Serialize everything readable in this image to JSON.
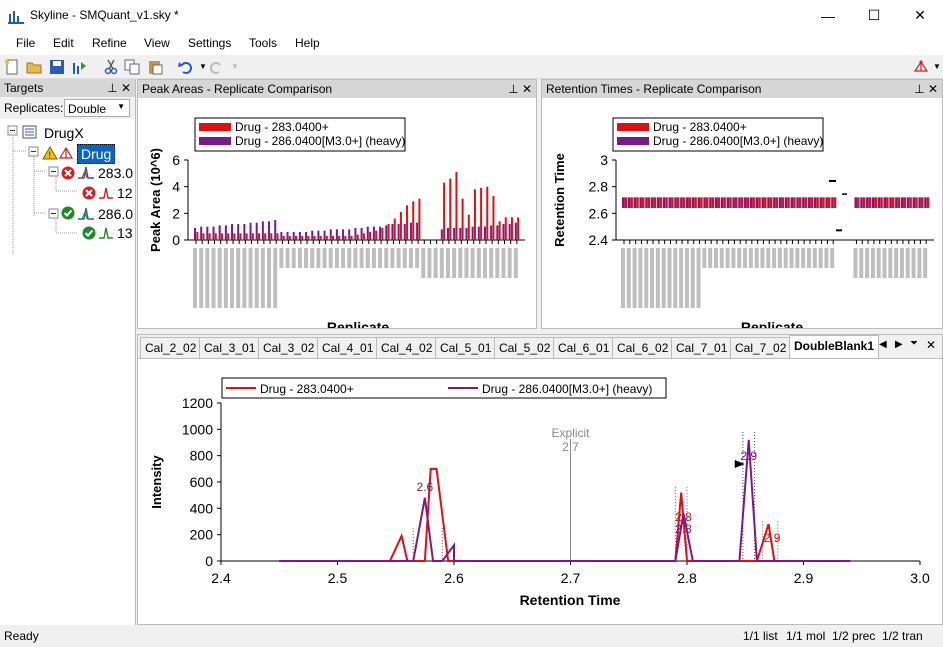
{
  "window": {
    "title": "Skyline - SMQuant_v1.sky *",
    "minimize": "—",
    "maximize": "☐",
    "close": "✕"
  },
  "menu": [
    "File",
    "Edit",
    "Refine",
    "View",
    "Settings",
    "Tools",
    "Help"
  ],
  "targets_panel": {
    "title": "Targets",
    "replicates_label": "Replicates:",
    "replicate_selected": "Double",
    "tree": {
      "group": "DrugX",
      "molecule": "Drug",
      "precursor1": "283.0",
      "transition1": "12",
      "precursor2": "286.0",
      "transition2": "13"
    }
  },
  "peak_areas": {
    "title": "Peak Areas - Replicate Comparison",
    "chart_data": {
      "type": "bar",
      "ylabel": "Peak Area (10^6)",
      "xlabel": "Replicate",
      "ylim": [
        0,
        6
      ],
      "yticks": [
        "0",
        "2",
        "4",
        "6"
      ],
      "series": [
        {
          "name": "Drug - 283.0400+",
          "color": "#e01010"
        },
        {
          "name": "Drug - 286.0400[M3.0+] (heavy)",
          "color": "#7a1a8a"
        }
      ],
      "red_values": [
        0.6,
        0.5,
        0.5,
        0.5,
        0.5,
        0.5,
        0.5,
        0.5,
        0.5,
        0.5,
        0.5,
        0.5,
        0.5,
        0.5,
        0.3,
        0.3,
        0.3,
        0.3,
        0.3,
        0.3,
        0.3,
        0.3,
        0.3,
        0.3,
        0.3,
        0.3,
        0.4,
        0.5,
        0.6,
        0.7,
        0.9,
        1.2,
        1.6,
        2.1,
        2.6,
        2.9,
        3.1,
        0.0,
        0.0,
        0.0,
        4.3,
        4.6,
        5.1,
        3.1,
        1.9,
        3.8,
        3.9,
        4.0,
        3.3,
        1.4,
        1.7,
        1.7,
        1.7
      ],
      "purple_values": [
        0.9,
        1.0,
        1.0,
        1.0,
        1.1,
        1.1,
        1.2,
        1.2,
        1.2,
        1.3,
        1.3,
        1.4,
        1.4,
        1.5,
        0.6,
        0.6,
        0.6,
        0.6,
        0.6,
        0.7,
        0.7,
        0.7,
        0.8,
        0.8,
        0.8,
        0.8,
        0.9,
        0.9,
        1.0,
        1.0,
        1.0,
        1.1,
        1.2,
        1.2,
        1.2,
        1.3,
        1.3,
        0.0,
        0.0,
        0.0,
        0.8,
        0.9,
        0.9,
        0.9,
        0.9,
        1.0,
        1.0,
        1.0,
        1.1,
        1.1,
        1.2,
        1.2,
        1.3
      ]
    }
  },
  "retention_times": {
    "title": "Retention Times - Replicate Comparison",
    "chart_data": {
      "type": "bar",
      "ylabel": "Retention Time",
      "xlabel": "Replicate",
      "ylim": [
        2.4,
        3.0
      ],
      "yticks": [
        "2.4",
        "2.6",
        "2.8",
        "3"
      ],
      "series": [
        {
          "name": "Drug - 283.0400+",
          "color": "#e01010"
        },
        {
          "name": "Drug - 286.0400[M3.0+] (heavy)",
          "color": "#7a1a8a"
        }
      ]
    }
  },
  "chromatogram": {
    "tabs": [
      "Cal_2_02",
      "Cal_3_01",
      "Cal_3_02",
      "Cal_4_01",
      "Cal_4_02",
      "Cal_5_01",
      "Cal_5_02",
      "Cal_6_01",
      "Cal_6_02",
      "Cal_7_01",
      "Cal_7_02",
      "DoubleBlank1"
    ],
    "active_tab": "DoubleBlank1",
    "chart_data": {
      "type": "line",
      "xlabel": "Retention Time",
      "ylabel": "Intensity",
      "xlim": [
        2.4,
        3.0
      ],
      "ylim": [
        0,
        1200
      ],
      "xticks": [
        "2.4",
        "2.5",
        "2.6",
        "2.7",
        "2.8",
        "2.9",
        "3.0"
      ],
      "yticks": [
        "0",
        "200",
        "400",
        "600",
        "800",
        "1000",
        "1200"
      ],
      "series": [
        {
          "name": "Drug - 283.0400+",
          "color": "#e01010",
          "x": [
            2.45,
            2.545,
            2.555,
            2.56,
            2.575,
            2.58,
            2.585,
            2.595,
            2.66,
            2.79,
            2.795,
            2.8,
            2.86,
            2.87,
            2.875,
            2.94
          ],
          "y": [
            0,
            0,
            190,
            0,
            0,
            700,
            700,
            0,
            0,
            0,
            520,
            0,
            0,
            280,
            0,
            0
          ]
        },
        {
          "name": "Drug - 286.0400[M3.0+] (heavy)",
          "color": "#7a1a8a",
          "x": [
            2.45,
            2.565,
            2.575,
            2.582,
            2.59,
            2.6,
            2.6,
            2.79,
            2.797,
            2.805,
            2.845,
            2.853,
            2.86,
            2.94
          ],
          "y": [
            0,
            0,
            480,
            0,
            0,
            120,
            0,
            0,
            360,
            0,
            0,
            920,
            0,
            0
          ]
        }
      ],
      "annotations": [
        {
          "text": "Explicit",
          "x": 2.7,
          "color": "#888"
        },
        {
          "text": "2.7",
          "x": 2.7,
          "color": "#888"
        },
        {
          "text": "2.6",
          "x": 2.575,
          "color": "#7a1a8a"
        },
        {
          "text": "2.8",
          "x": 2.797,
          "color": "#e01010"
        },
        {
          "text": "2.8",
          "x": 2.797,
          "color": "#7a1a8a"
        },
        {
          "text": "2.9",
          "x": 2.853,
          "color": "#7a1a8a"
        },
        {
          "text": "2.9",
          "x": 2.873,
          "color": "#e01010"
        }
      ]
    }
  },
  "status": {
    "left": "Ready",
    "list": "1/1 list",
    "mol": "1/1 mol",
    "prec": "1/2 prec",
    "tran": "1/2 tran"
  }
}
